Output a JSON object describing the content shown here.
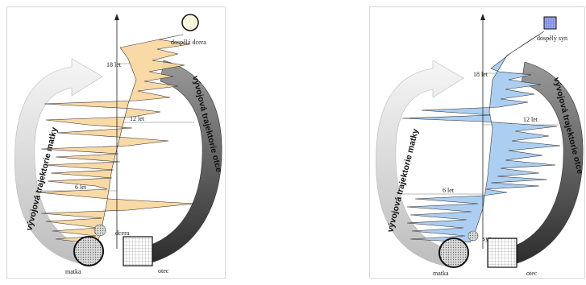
{
  "left": {
    "age_labels": [
      "18 let",
      "12 let",
      "6 let"
    ],
    "mother_arc_label": "vývojová trajektorie matky",
    "father_arc_label": "vývojová trajektorie otce",
    "adult_label": "dospělá dcera",
    "child_label": "dcera",
    "mother_label": "matka",
    "father_label": "otec",
    "fill_color": "#f9d7a0"
  },
  "right": {
    "age_labels": [
      "18 let",
      "12 let",
      "6 let"
    ],
    "mother_arc_label": "vývojová trajektorie matky",
    "father_arc_label": "vývojová trajektorie otce",
    "adult_label": "dospělý syn",
    "child_label": "syn",
    "mother_label": "matka",
    "father_label": "otec",
    "fill_color": "#a8ccf0"
  }
}
